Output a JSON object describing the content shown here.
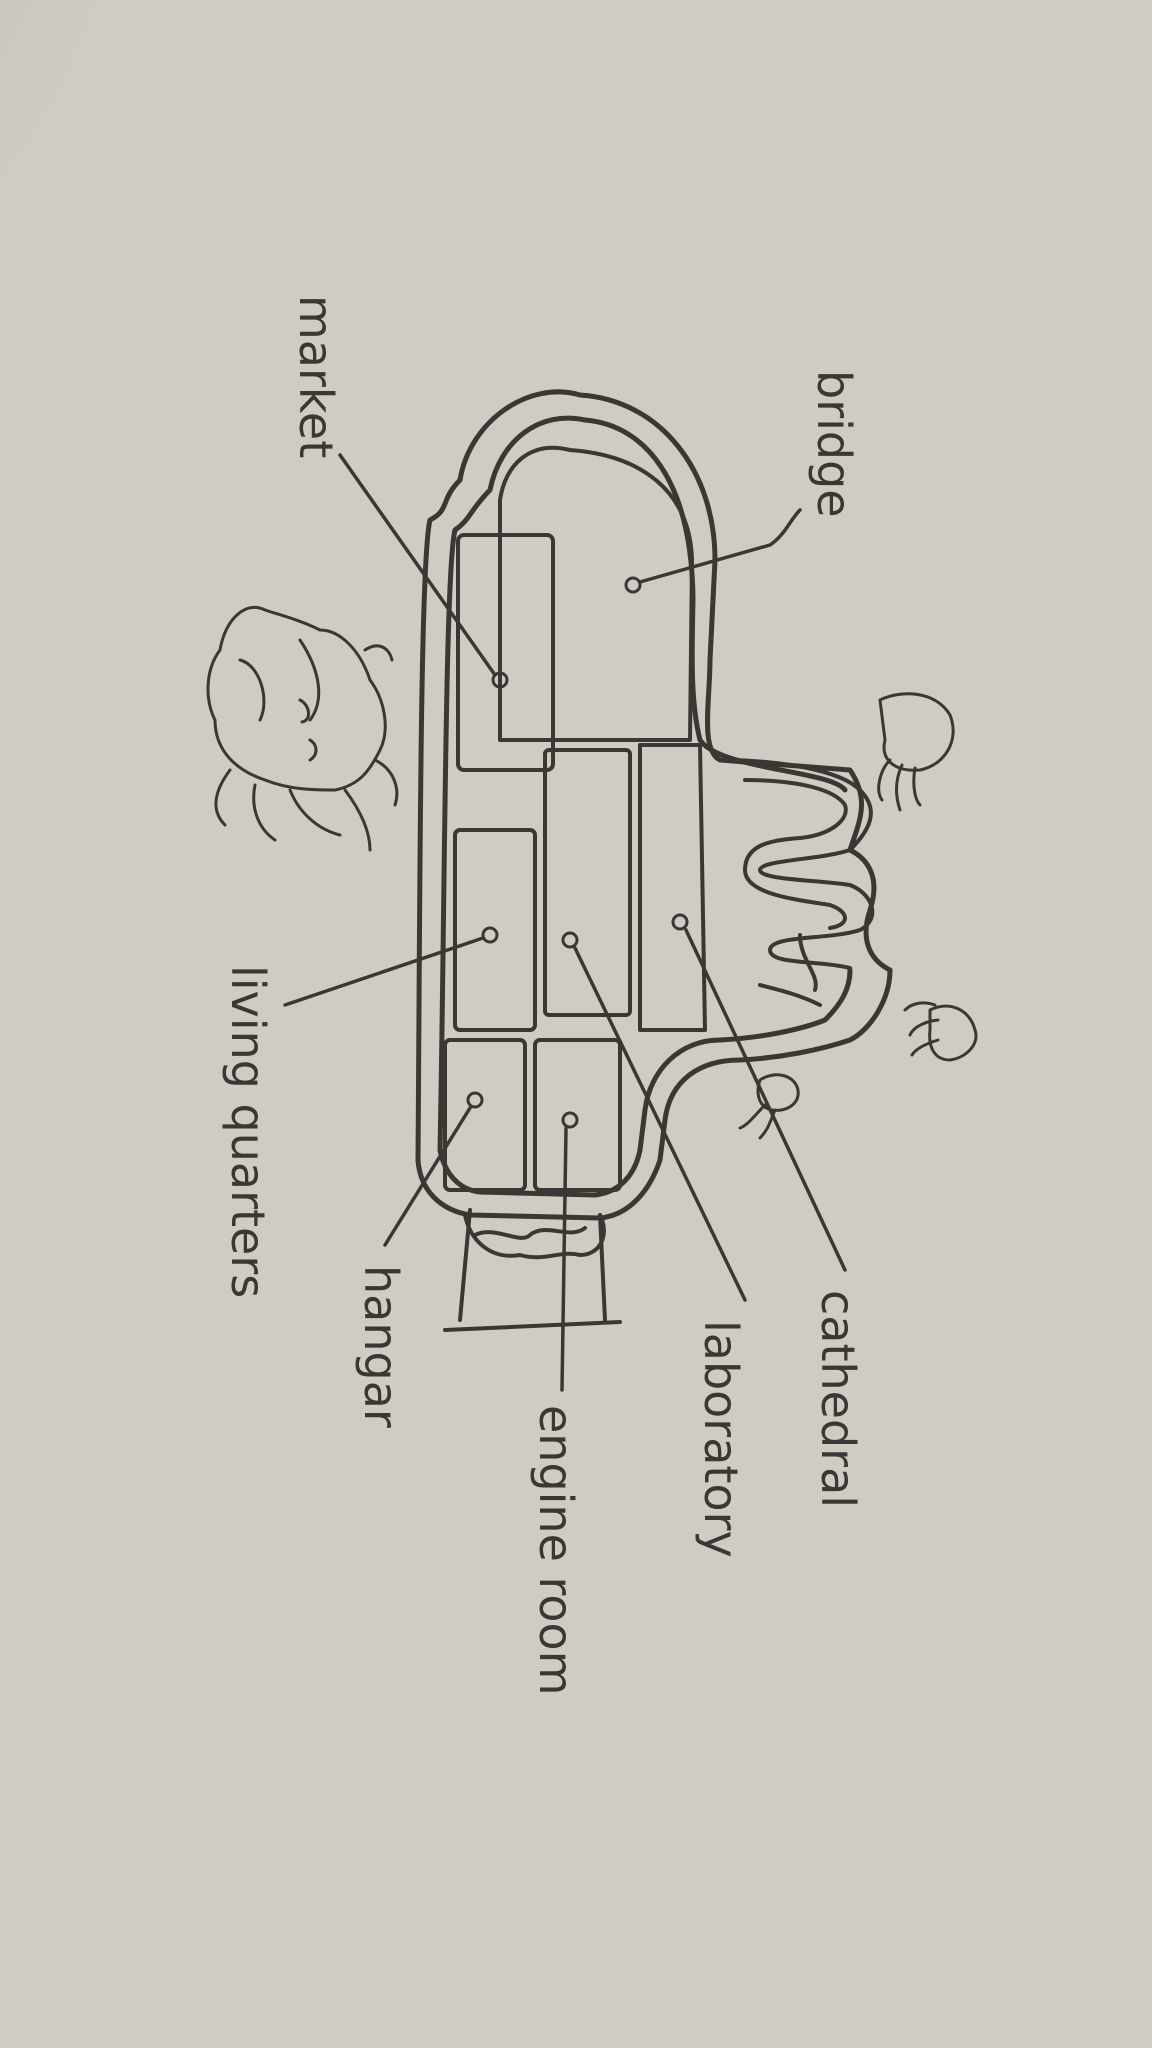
{
  "diagram": {
    "labels": {
      "bridge": "bridge",
      "market": "market",
      "living_quarters": "living quarters",
      "hangar": "hangar",
      "engine_room": "engine room",
      "laboratory": "laboratory",
      "cathedral": "cathedral"
    },
    "colors": {
      "paper": "#cfccc3",
      "ink": "#3b3734",
      "shadow": "#8f8c86"
    }
  }
}
